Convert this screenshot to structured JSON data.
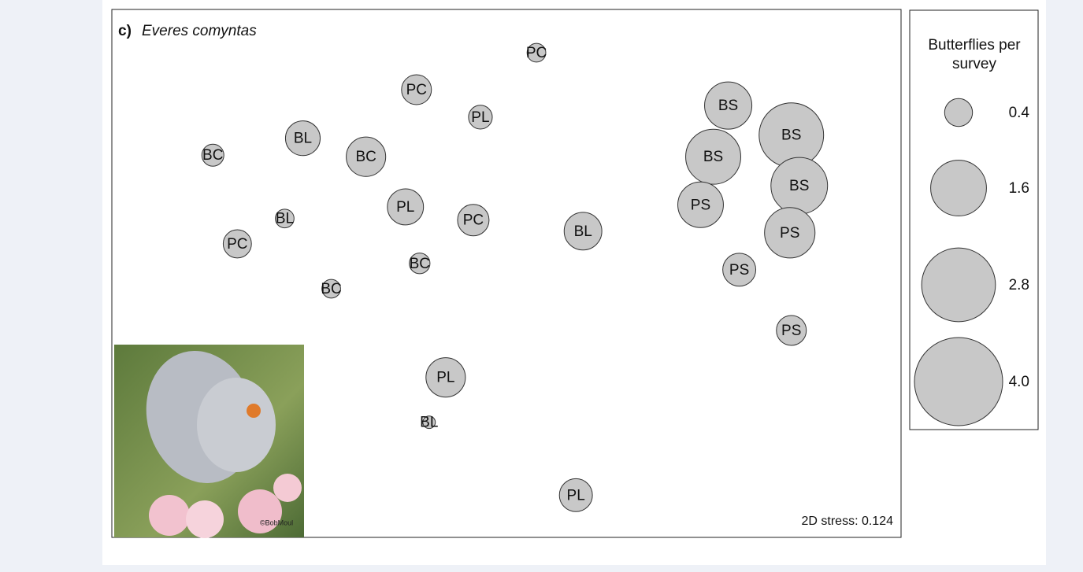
{
  "chart_data": {
    "type": "scatter",
    "panel_label": "c)",
    "title": "Everes comyntas",
    "annotation": "2D stress: 0.124",
    "xlim": [
      0,
      100
    ],
    "ylim": [
      0,
      100
    ],
    "color": "#c8c8c8",
    "labels": [
      "PC",
      "PC",
      "PL",
      "BS",
      "BS",
      "BL",
      "BC",
      "BC",
      "BS",
      "BS",
      "PS",
      "PL",
      "PC",
      "BL",
      "BL",
      "PS",
      "PC",
      "BC",
      "PS",
      "BC",
      "PS",
      "PL",
      "BL",
      "PL"
    ],
    "x": [
      53.8,
      38.6,
      46.7,
      78.1,
      86.1,
      24.2,
      12.8,
      32.2,
      76.2,
      87.1,
      74.6,
      37.2,
      45.8,
      21.9,
      59.7,
      85.9,
      15.9,
      39.0,
      79.5,
      27.8,
      86.1,
      42.3,
      40.2,
      58.8
    ],
    "y": [
      91.8,
      84.8,
      79.6,
      81.8,
      76.2,
      75.6,
      72.4,
      72.1,
      72.1,
      66.6,
      63.0,
      62.6,
      60.1,
      60.4,
      58.0,
      57.7,
      55.6,
      51.9,
      50.7,
      47.1,
      39.2,
      30.3,
      21.8,
      8.0
    ],
    "sizes": [
      0.18,
      0.46,
      0.29,
      1.15,
      2.14,
      0.62,
      0.25,
      0.8,
      1.56,
      1.65,
      1.07,
      0.67,
      0.51,
      0.18,
      0.73,
      1.31,
      0.41,
      0.22,
      0.56,
      0.18,
      0.46,
      0.8,
      0.08,
      0.56
    ],
    "size_legend": {
      "title": "Butterflies per survey",
      "values": [
        0.4,
        1.6,
        2.8,
        4
      ],
      "value_labels": [
        "0.4",
        "1.6",
        "2.8",
        "4.0"
      ]
    }
  }
}
